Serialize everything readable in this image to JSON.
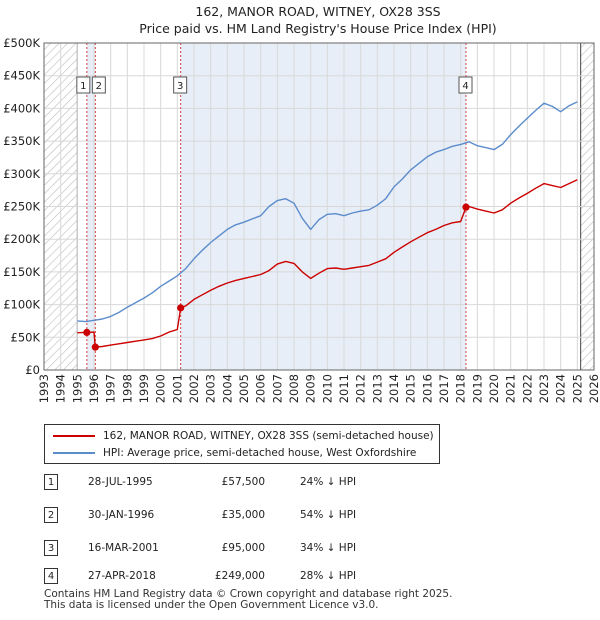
{
  "title_line1": "162, MANOR ROAD, WITNEY, OX28 3SS",
  "title_line2": "Price paid vs. HM Land Registry's House Price Index (HPI)",
  "colors": {
    "property": "#cc0000",
    "hpi": "#5b8ccc",
    "band": "#e8eef8",
    "hatch": "#bbbbbb",
    "grid": "#d8d8d8"
  },
  "legend": {
    "property": "162, MANOR ROAD, WITNEY, OX28 3SS (semi-detached house)",
    "hpi": "HPI: Average price, semi-detached house, West Oxfordshire"
  },
  "sales": [
    {
      "num": "1",
      "date": "28-JUL-1995",
      "price": "£57,500",
      "pct": "24% ↓ HPI"
    },
    {
      "num": "2",
      "date": "30-JAN-1996",
      "price": "£35,000",
      "pct": "54% ↓ HPI"
    },
    {
      "num": "3",
      "date": "16-MAR-2001",
      "price": "£95,000",
      "pct": "34% ↓ HPI"
    },
    {
      "num": "4",
      "date": "27-APR-2018",
      "price": "£249,000",
      "pct": "28% ↓ HPI"
    }
  ],
  "footer_line1": "Contains HM Land Registry data © Crown copyright and database right 2025.",
  "footer_line2": "This data is licensed under the Open Government Licence v3.0.",
  "chart_data": {
    "type": "line",
    "title": "162, MANOR ROAD, WITNEY, OX28 3SS — Price paid vs. HM Land Registry's House Price Index (HPI)",
    "xlim": [
      1993,
      2026
    ],
    "ylim": [
      0,
      500000
    ],
    "x_ticks": [
      1993,
      1994,
      1995,
      1996,
      1997,
      1998,
      1999,
      2000,
      2001,
      2002,
      2003,
      2004,
      2005,
      2006,
      2007,
      2008,
      2009,
      2010,
      2011,
      2012,
      2013,
      2014,
      2015,
      2016,
      2017,
      2018,
      2019,
      2020,
      2021,
      2022,
      2023,
      2024,
      2025,
      2026
    ],
    "y_ticks": [
      {
        "value": 0,
        "label": "£0"
      },
      {
        "value": 50000,
        "label": "£50K"
      },
      {
        "value": 100000,
        "label": "£100K"
      },
      {
        "value": 150000,
        "label": "£150K"
      },
      {
        "value": 200000,
        "label": "£200K"
      },
      {
        "value": 250000,
        "label": "£250K"
      },
      {
        "value": 300000,
        "label": "£300K"
      },
      {
        "value": 350000,
        "label": "£350K"
      },
      {
        "value": 400000,
        "label": "£400K"
      },
      {
        "value": 450000,
        "label": "£450K"
      },
      {
        "value": 500000,
        "label": "£500K"
      }
    ],
    "hatched_ranges": [
      [
        1993,
        1995.0
      ],
      [
        2025.2,
        2026
      ]
    ],
    "shaded_ranges": [
      [
        1995.57,
        1996.08
      ],
      [
        2001.2,
        2018.32
      ]
    ],
    "sale_markers": [
      {
        "label": "1",
        "x": 1995.57,
        "y": 57500
      },
      {
        "label": "2",
        "x": 1996.08,
        "y": 35000
      },
      {
        "label": "3",
        "x": 2001.2,
        "y": 95000
      },
      {
        "label": "4",
        "x": 2018.32,
        "y": 249000
      }
    ],
    "series": [
      {
        "name": "HPI: Average price, semi-detached house, West Oxfordshire",
        "x": [
          1995.0,
          1995.5,
          1996.0,
          1996.5,
          1997.0,
          1997.5,
          1998.0,
          1998.5,
          1999.0,
          1999.5,
          2000.0,
          2000.5,
          2001.0,
          2001.5,
          2002.0,
          2002.5,
          2003.0,
          2003.5,
          2004.0,
          2004.5,
          2005.0,
          2005.5,
          2006.0,
          2006.5,
          2007.0,
          2007.5,
          2008.0,
          2008.5,
          2009.0,
          2009.5,
          2010.0,
          2010.5,
          2011.0,
          2011.5,
          2012.0,
          2012.5,
          2013.0,
          2013.5,
          2014.0,
          2014.5,
          2015.0,
          2015.5,
          2016.0,
          2016.5,
          2017.0,
          2017.5,
          2018.0,
          2018.5,
          2019.0,
          2019.5,
          2020.0,
          2020.5,
          2021.0,
          2021.5,
          2022.0,
          2022.5,
          2023.0,
          2023.5,
          2024.0,
          2024.5,
          2025.0
        ],
        "values": [
          75000,
          74000,
          76000,
          78000,
          82000,
          88000,
          96000,
          103000,
          110000,
          118000,
          128000,
          136000,
          144000,
          155000,
          170000,
          183000,
          195000,
          205000,
          215000,
          222000,
          226000,
          231000,
          236000,
          250000,
          259000,
          262000,
          255000,
          232000,
          215000,
          230000,
          238000,
          239000,
          236000,
          240000,
          243000,
          245000,
          252000,
          262000,
          280000,
          292000,
          306000,
          316000,
          326000,
          333000,
          337000,
          342000,
          345000,
          349000,
          343000,
          340000,
          337000,
          345000,
          360000,
          373000,
          385000,
          397000,
          408000,
          403000,
          395000,
          404000,
          410000
        ]
      },
      {
        "name": "162, MANOR ROAD, WITNEY, OX28 3SS (semi-detached house)",
        "x": [
          1995.0,
          1995.57,
          1995.6,
          1996.0,
          1996.08,
          1996.1,
          1996.5,
          1997.0,
          1997.5,
          1998.0,
          1998.5,
          1999.0,
          1999.5,
          2000.0,
          2000.5,
          2001.0,
          2001.2,
          2001.5,
          2002.0,
          2002.5,
          2003.0,
          2003.5,
          2004.0,
          2004.5,
          2005.0,
          2005.5,
          2006.0,
          2006.5,
          2007.0,
          2007.5,
          2008.0,
          2008.5,
          2009.0,
          2009.5,
          2010.0,
          2010.5,
          2011.0,
          2011.5,
          2012.0,
          2012.5,
          2013.0,
          2013.5,
          2014.0,
          2014.5,
          2015.0,
          2015.5,
          2016.0,
          2016.5,
          2017.0,
          2017.5,
          2018.0,
          2018.32,
          2018.5,
          2019.0,
          2019.5,
          2020.0,
          2020.5,
          2021.0,
          2021.5,
          2022.0,
          2022.5,
          2023.0,
          2023.5,
          2024.0,
          2024.5,
          2025.0
        ],
        "values": [
          57000,
          57500,
          57500,
          58000,
          35000,
          35000,
          36000,
          38000,
          40000,
          42000,
          44000,
          46000,
          48000,
          52000,
          58000,
          62000,
          95000,
          98000,
          108000,
          115000,
          122000,
          128000,
          133000,
          137000,
          140000,
          143000,
          146000,
          152000,
          162000,
          166000,
          163000,
          150000,
          140000,
          148000,
          155000,
          156000,
          154000,
          156000,
          158000,
          160000,
          165000,
          170000,
          180000,
          188000,
          196000,
          203000,
          210000,
          215000,
          221000,
          225000,
          227000,
          249000,
          250000,
          246000,
          243000,
          240000,
          245000,
          255000,
          263000,
          270000,
          278000,
          285000,
          282000,
          279000,
          285000,
          291000
        ]
      }
    ]
  }
}
